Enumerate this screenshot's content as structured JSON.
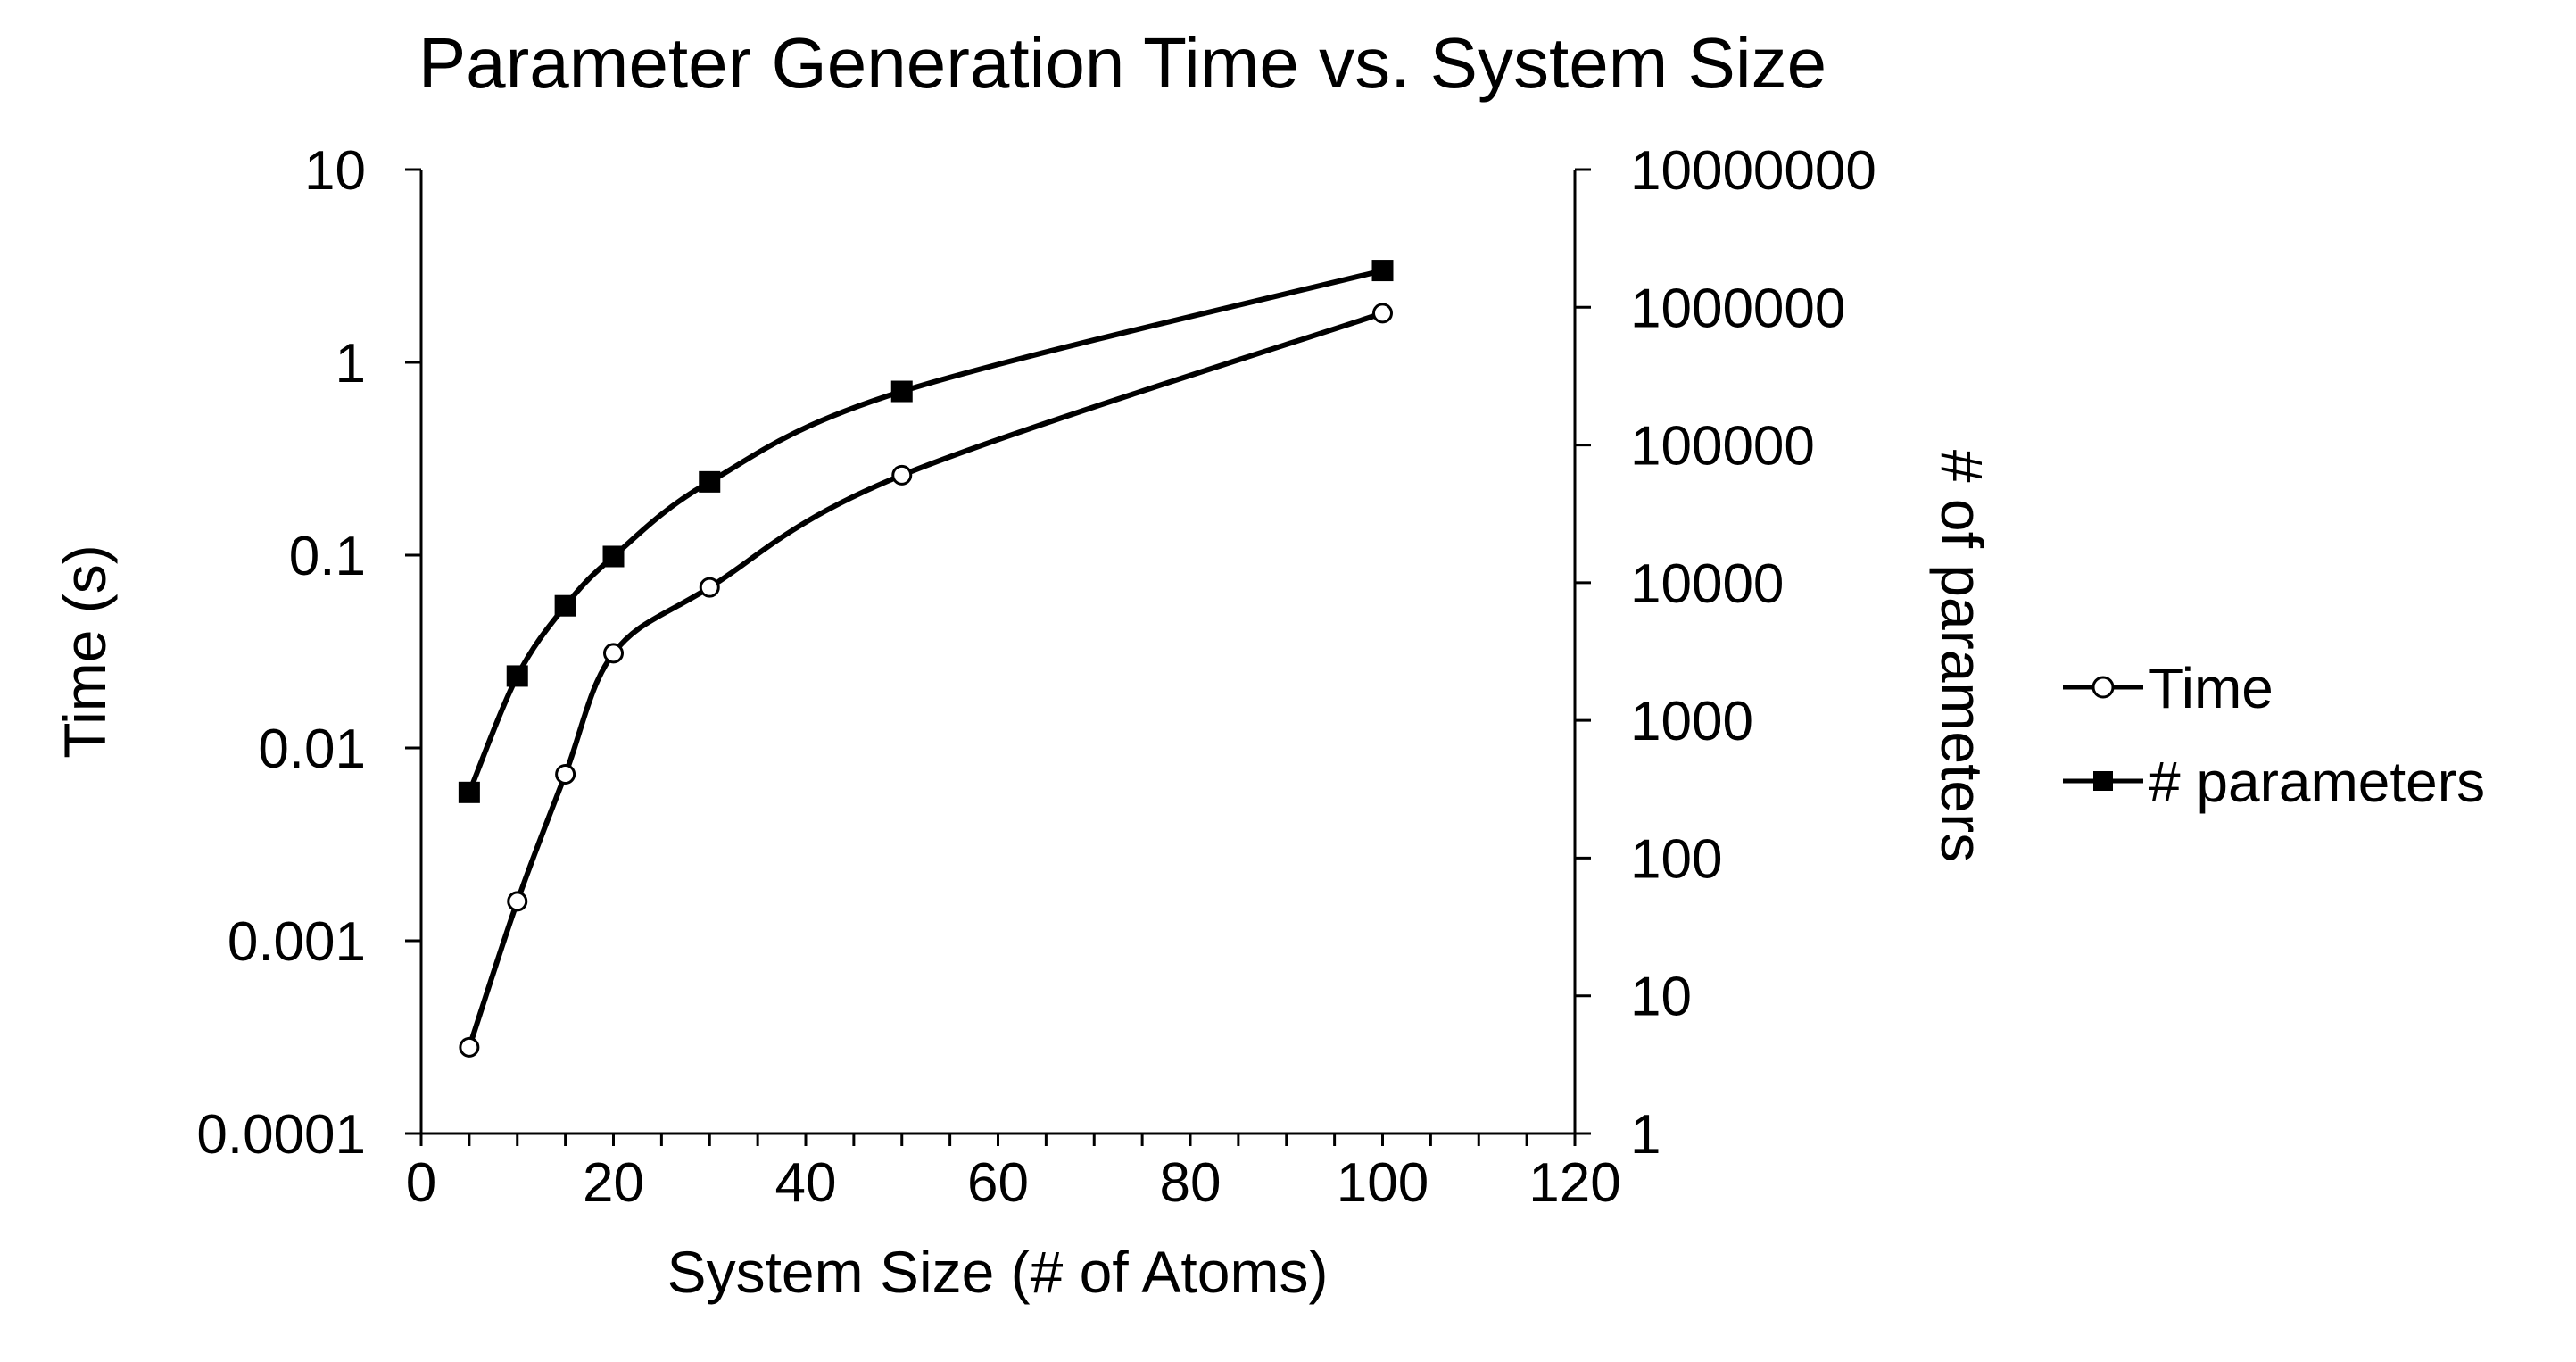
{
  "chart_data": {
    "type": "line",
    "title": "Parameter Generation Time vs. System Size",
    "xlabel": "System Size (# of Atoms)",
    "ylabel": "Time (s)",
    "y2label": "# of parameters",
    "xlim": [
      0,
      120
    ],
    "x_ticks": [
      "0",
      "20",
      "40",
      "60",
      "80",
      "100",
      "120"
    ],
    "x_minor_step": 5,
    "ylim": [
      0.0001,
      10
    ],
    "y_scale": "log",
    "y_ticks": [
      "0.0001",
      "0.001",
      "0.01",
      "0.1",
      "1",
      "10"
    ],
    "y2lim": [
      1,
      10000000
    ],
    "y2_scale": "log",
    "y2_ticks": [
      "1",
      "10",
      "100",
      "1000",
      "10000",
      "100000",
      "1000000",
      "10000000"
    ],
    "grid": false,
    "legend_position": "right",
    "series": [
      {
        "name": "Time",
        "axis": "left",
        "marker": "open-circle",
        "color": "#000000",
        "x": [
          5,
          10,
          15,
          20,
          30,
          50,
          100
        ],
        "y": [
          0.00028,
          0.0016,
          0.0073,
          0.031,
          0.068,
          0.26,
          1.8
        ]
      },
      {
        "name": "# parameters",
        "axis": "right",
        "marker": "filled-square",
        "color": "#000000",
        "x": [
          5,
          10,
          15,
          20,
          30,
          50,
          100
        ],
        "y": [
          300,
          2100,
          6800,
          15500,
          54000,
          245000,
          1850000
        ]
      }
    ]
  }
}
